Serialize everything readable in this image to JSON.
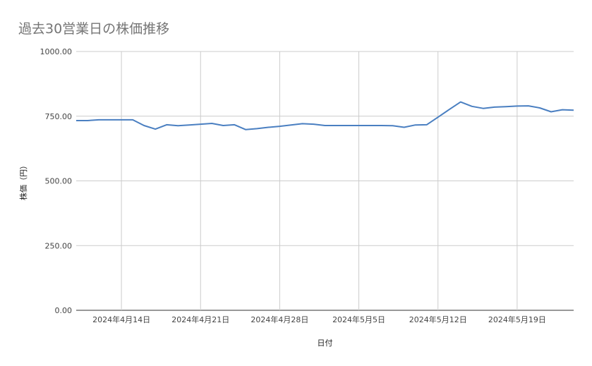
{
  "chart_data": {
    "type": "line",
    "title": "過去30営業日の株価推移",
    "xlabel": "日付",
    "ylabel": "株価（円）",
    "ylim": [
      0,
      1000
    ],
    "yticks": [
      "0.00",
      "250.00",
      "500.00",
      "750.00",
      "1000.00"
    ],
    "xlim": [
      "2024-04-10",
      "2024-05-24"
    ],
    "xticks": [
      {
        "date": "2024-04-14",
        "label": "2024年4月14日"
      },
      {
        "date": "2024-04-21",
        "label": "2024年4月21日"
      },
      {
        "date": "2024-04-28",
        "label": "2024年4月28日"
      },
      {
        "date": "2024-05-05",
        "label": "2024年5月5日"
      },
      {
        "date": "2024-05-12",
        "label": "2024年5月12日"
      },
      {
        "date": "2024-05-19",
        "label": "2024年5月19日"
      }
    ],
    "grid": true,
    "line_color": "#4a7fc1",
    "x": [
      "2024-04-10",
      "2024-04-11",
      "2024-04-12",
      "2024-04-13",
      "2024-04-14",
      "2024-04-15",
      "2024-04-16",
      "2024-04-17",
      "2024-04-18",
      "2024-04-19",
      "2024-04-20",
      "2024-04-21",
      "2024-04-22",
      "2024-04-23",
      "2024-04-24",
      "2024-04-25",
      "2024-04-26",
      "2024-04-27",
      "2024-04-28",
      "2024-04-29",
      "2024-04-30",
      "2024-05-01",
      "2024-05-02",
      "2024-05-03",
      "2024-05-04",
      "2024-05-05",
      "2024-05-06",
      "2024-05-07",
      "2024-05-08",
      "2024-05-09",
      "2024-05-10",
      "2024-05-11",
      "2024-05-12",
      "2024-05-13",
      "2024-05-14",
      "2024-05-15",
      "2024-05-16",
      "2024-05-17",
      "2024-05-18",
      "2024-05-19",
      "2024-05-20",
      "2024-05-21",
      "2024-05-22",
      "2024-05-23",
      "2024-05-24"
    ],
    "values": [
      733,
      733,
      736,
      736,
      736,
      736,
      714,
      700,
      717,
      713,
      716,
      719,
      722,
      714,
      717,
      698,
      702,
      707,
      711,
      716,
      721,
      719,
      714,
      714,
      714,
      714,
      714,
      714,
      713,
      707,
      716,
      717,
      746,
      776,
      805,
      788,
      780,
      785,
      787,
      789,
      790,
      782,
      767,
      775,
      773
    ]
  }
}
